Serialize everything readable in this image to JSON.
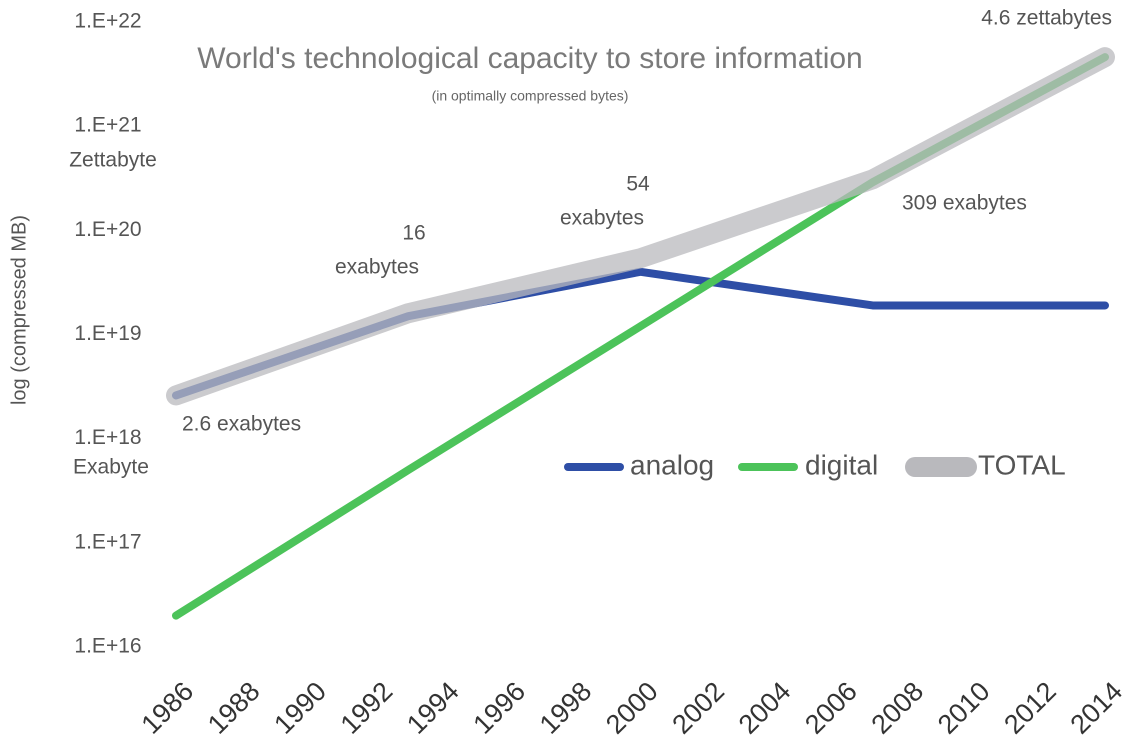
{
  "chart_data": {
    "type": "line",
    "title": "World's technological capacity to store information",
    "subtitle": "(in optimally compressed bytes)",
    "y_label": "log (compressed MB)",
    "x": [
      1986,
      1993,
      2000,
      2007,
      2014
    ],
    "series": [
      {
        "name": "analog",
        "color": "#2e4ea6",
        "values": [
          2.6e+18,
          1.5e+19,
          4e+19,
          1.9e+19,
          1.9e+19
        ]
      },
      {
        "name": "digital",
        "color": "#4cc35a",
        "values": [
          2e+16,
          5e+17,
          1.2e+19,
          2.9e+20,
          4.6e+21
        ]
      },
      {
        "name": "TOTAL",
        "color": "#b9b9bd",
        "values": [
          2.6e+18,
          1.6e+19,
          5.4e+19,
          3.09e+20,
          4.6e+21
        ]
      }
    ],
    "xlim": [
      1986,
      2014
    ],
    "xticks": [
      1986,
      1988,
      1990,
      1992,
      1994,
      1996,
      1998,
      2000,
      2002,
      2004,
      2006,
      2008,
      2010,
      2012,
      2014
    ],
    "ylim": [
      1e+16,
      1e+22
    ],
    "yticks": [
      {
        "value": 1e+16,
        "label": "1.E+16"
      },
      {
        "value": 1e+17,
        "label": "1.E+17"
      },
      {
        "value": 1e+18,
        "label": "1.E+18"
      },
      {
        "value": 1e+19,
        "label": "1.E+19"
      },
      {
        "value": 1e+20,
        "label": "1.E+20"
      },
      {
        "value": 1e+21,
        "label": "1.E+21"
      },
      {
        "value": 1e+22,
        "label": "1.E+22"
      }
    ],
    "log_scale": true,
    "grid": false,
    "legend": "lower right",
    "annotations": [
      "Zettabyte",
      "Exabyte",
      "2.6 exabytes",
      "16",
      "exabytes",
      "54",
      "exabytes",
      "309 exabytes",
      "4.6 zettabytes"
    ]
  }
}
